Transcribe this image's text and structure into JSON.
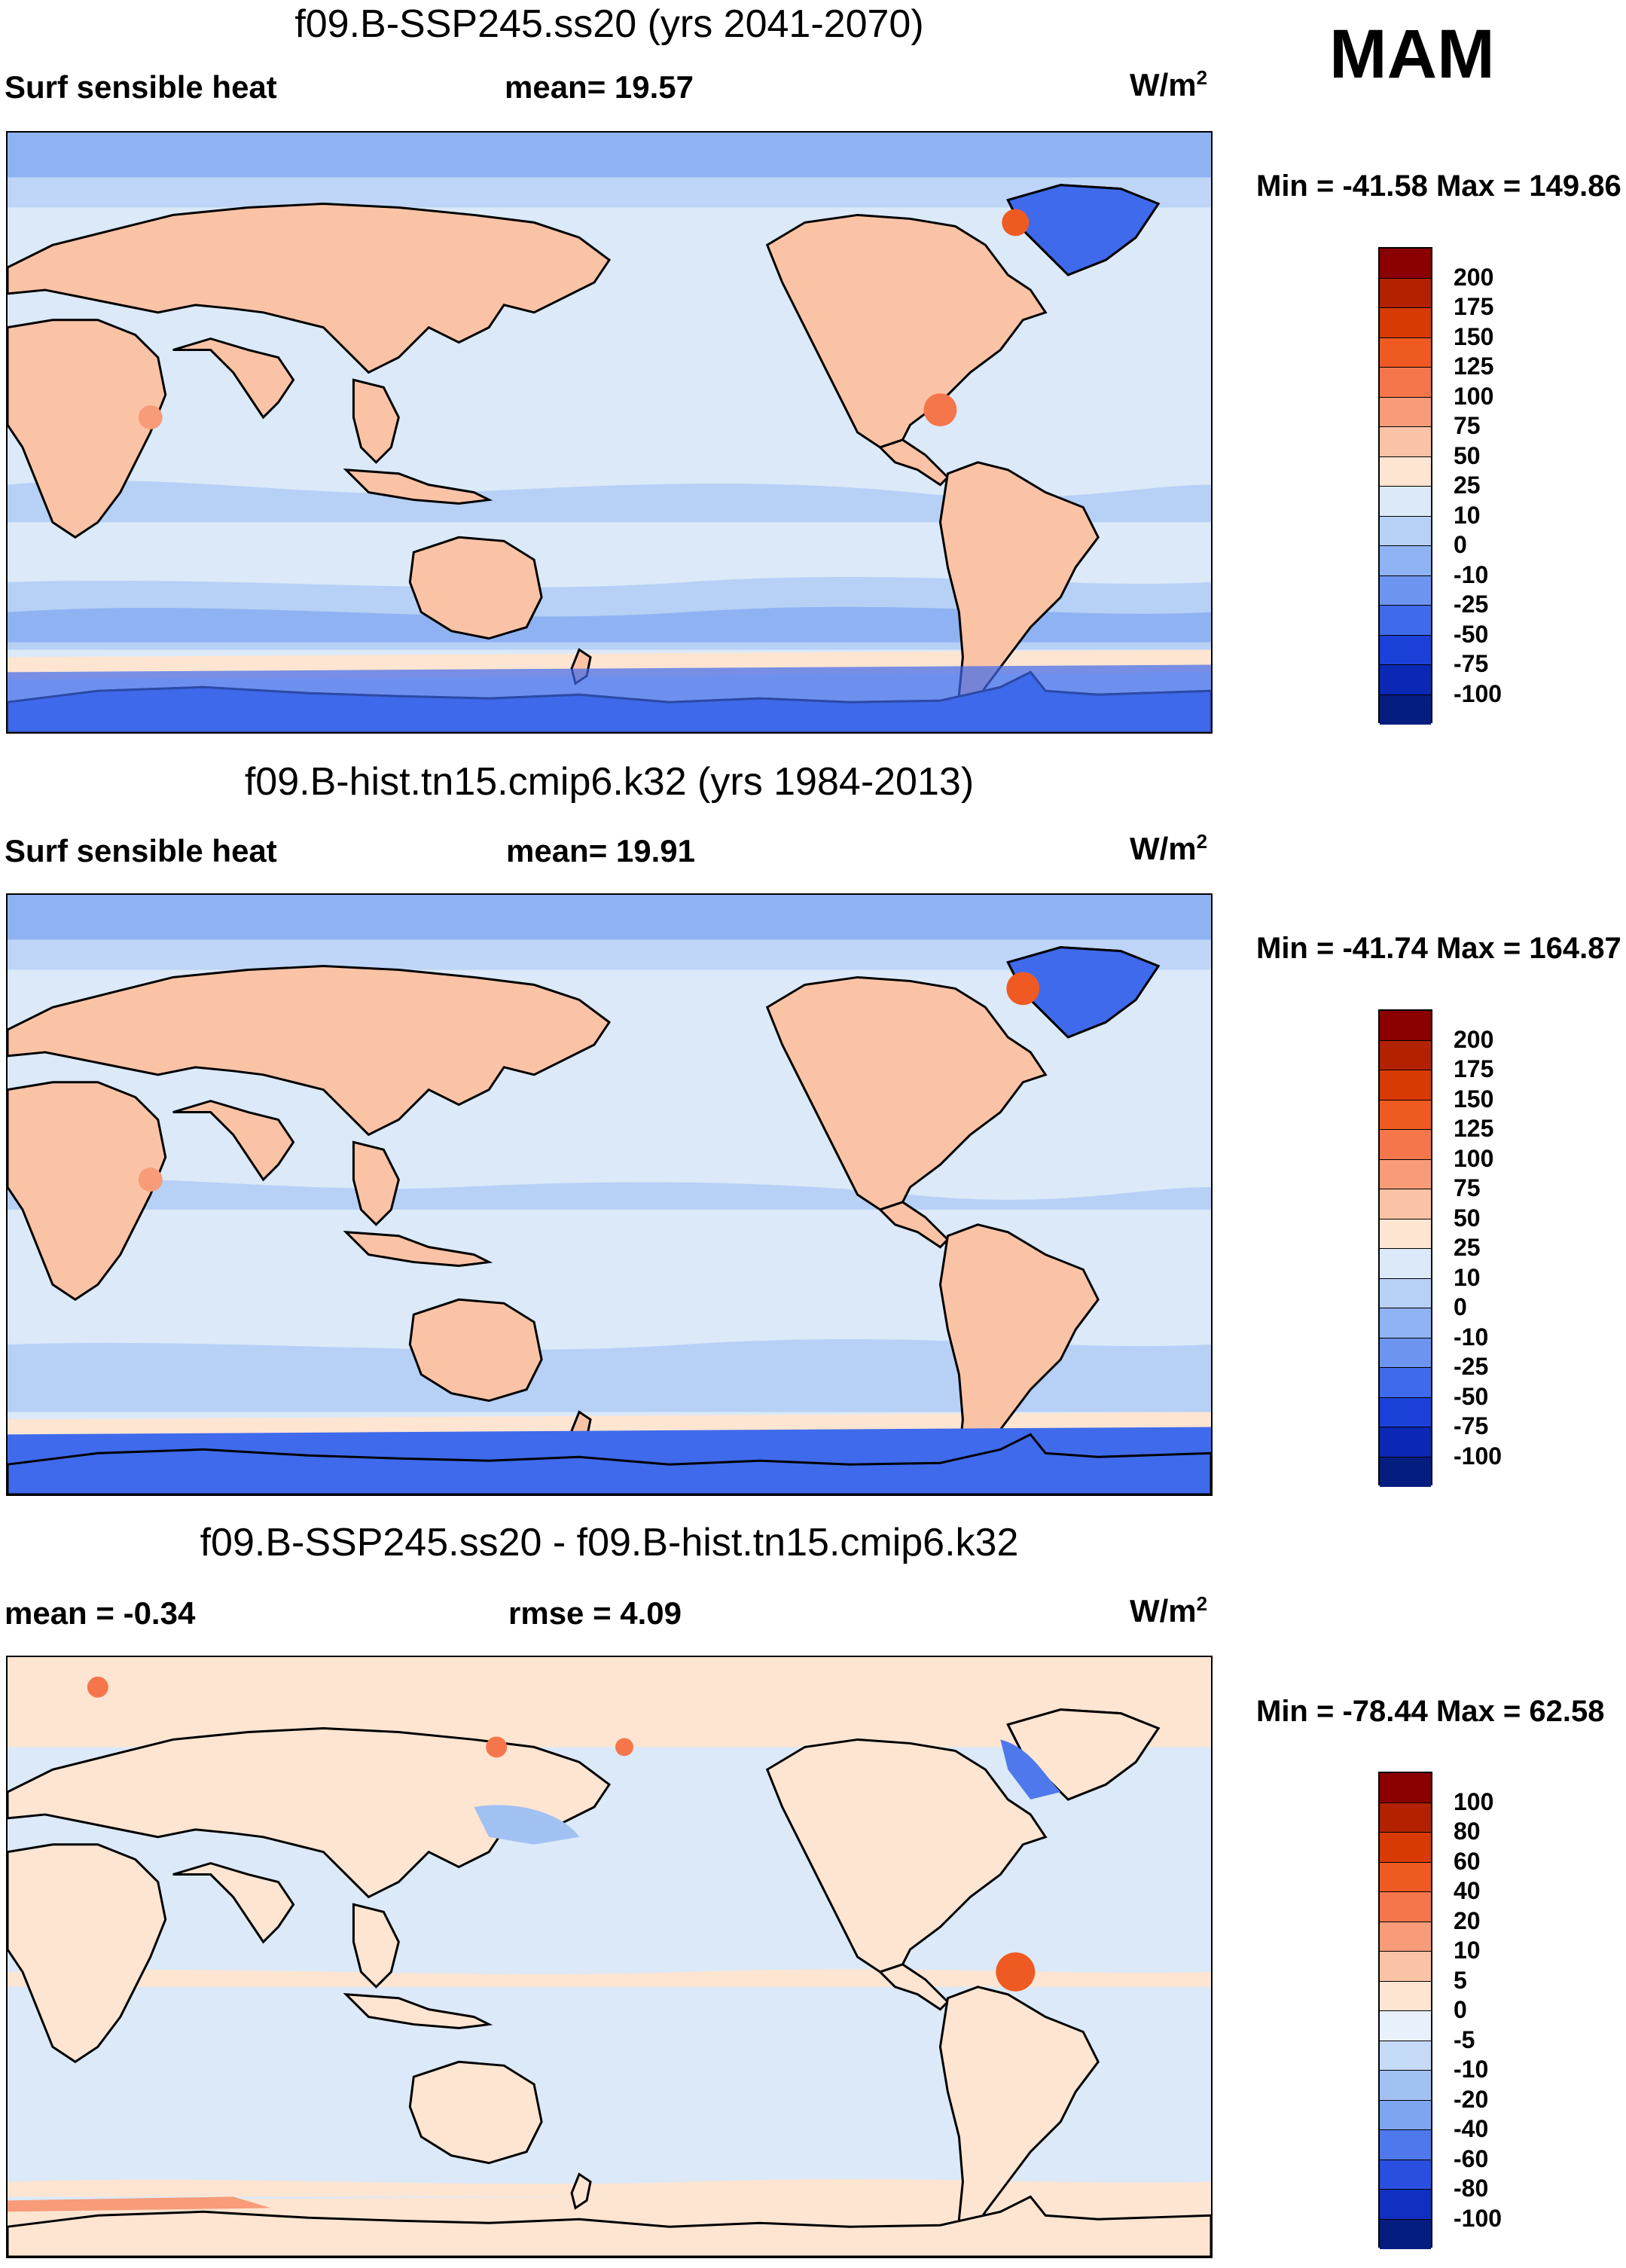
{
  "season": "MAM",
  "panels": [
    {
      "title": "f09.B-SSP245.ss20 (yrs 2041-2070)",
      "left_label": "Surf sensible heat",
      "center_label": "mean=  19.57",
      "units_base": "W/m",
      "units_exp": "2",
      "minmax": "Min = -41.58 Max = 149.86",
      "colorbar_labels": [
        "200",
        "175",
        "150",
        "125",
        "100",
        "75",
        "50",
        "25",
        "10",
        "0",
        "-10",
        "-25",
        "-50",
        "-75",
        "-100"
      ],
      "colorbar_colors": [
        "#8b0000",
        "#b22200",
        "#d83a06",
        "#ef5a22",
        "#f5764a",
        "#f79b78",
        "#fbc3a6",
        "#fde5d2",
        "#dbe9f8",
        "#b6d0f6",
        "#8fb2f2",
        "#6d95f0",
        "#3f6aeb",
        "#1b41d8",
        "#0a28b3",
        "#061d80"
      ]
    },
    {
      "title": "f09.B-hist.tn15.cmip6.k32 (yrs 1984-2013)",
      "left_label": "Surf sensible heat",
      "center_label": "mean=  19.91",
      "units_base": "W/m",
      "units_exp": "2",
      "minmax": "Min = -41.74 Max = 164.87",
      "colorbar_labels": [
        "200",
        "175",
        "150",
        "125",
        "100",
        "75",
        "50",
        "25",
        "10",
        "0",
        "-10",
        "-25",
        "-50",
        "-75",
        "-100"
      ],
      "colorbar_colors": [
        "#8b0000",
        "#b22200",
        "#d83a06",
        "#ef5a22",
        "#f5764a",
        "#f79b78",
        "#fbc3a6",
        "#fde5d2",
        "#dbe9f8",
        "#b6d0f6",
        "#8fb2f2",
        "#6d95f0",
        "#3f6aeb",
        "#1b41d8",
        "#0a28b3",
        "#061d80"
      ]
    },
    {
      "title": "f09.B-SSP245.ss20 - f09.B-hist.tn15.cmip6.k32",
      "left_label": "mean =  -0.34",
      "center_label": "rmse =    4.09",
      "units_base": "W/m",
      "units_exp": "2",
      "minmax": "Min = -78.44 Max =  62.58",
      "colorbar_labels": [
        "100",
        "80",
        "60",
        "40",
        "20",
        "10",
        "5",
        "0",
        "-5",
        "-10",
        "-20",
        "-40",
        "-60",
        "-80",
        "-100"
      ],
      "colorbar_colors": [
        "#8b0000",
        "#b22200",
        "#d83a06",
        "#ef5a22",
        "#f5764a",
        "#f79b78",
        "#fbc3a6",
        "#fde5d2",
        "#e8f0fb",
        "#c5daf6",
        "#a2c1f3",
        "#7ea6f0",
        "#4f78ec",
        "#2a4fe0",
        "#0f30c0",
        "#061d80"
      ]
    }
  ]
}
